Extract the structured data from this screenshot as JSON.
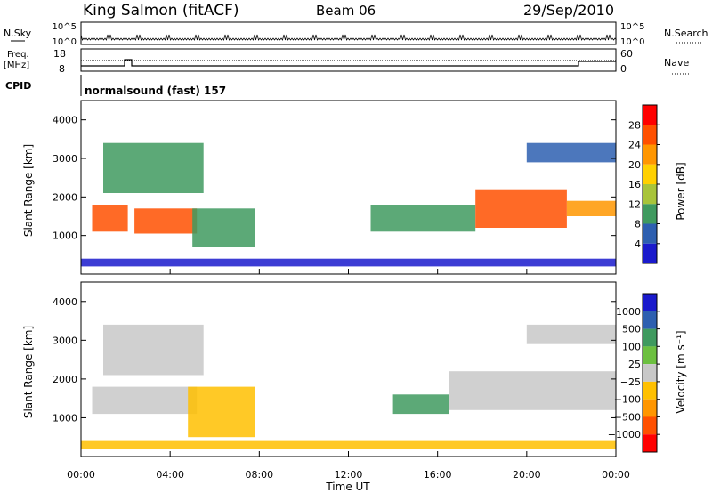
{
  "header": {
    "station": "King Salmon (fitACF)",
    "beam": "Beam 06",
    "date": "29/Sep/2010"
  },
  "top_panels": {
    "nsky_label": "N.Sky",
    "nsearch_label": "N.Search",
    "nsky_ticks": [
      "10^5",
      "10^0"
    ],
    "nsearch_ticks": [
      "10^5",
      "10^0"
    ],
    "freq_label": "Freq.",
    "freq_unit": "[MHz]",
    "freq_ticks": [
      "18",
      "8"
    ],
    "nave_label": "Nave",
    "nave_ticks": [
      "60",
      "0"
    ],
    "cpid_label": "CPID",
    "cpid_value": "normalsound (fast) 157"
  },
  "chart_data": [
    {
      "type": "heatmap",
      "panel": "power",
      "ylabel": "Slant Range [km]",
      "y_ticks": [
        "1000",
        "2000",
        "3000",
        "4000"
      ],
      "xlabel": "Time UT",
      "x_ticks": [
        "00:00",
        "04:00",
        "08:00",
        "12:00",
        "16:00",
        "20:00",
        "00:00"
      ],
      "colorbar": {
        "label": "Power [dB]",
        "ticks": [
          "28",
          "24",
          "20",
          "16",
          "12",
          "8",
          "4"
        ],
        "colors": [
          "#ff0000",
          "#ff5000",
          "#ff9600",
          "#ffd000",
          "#a8c43a",
          "#3f9a5f",
          "#2d5fb0",
          "#1a1acc"
        ]
      },
      "regions": [
        {
          "t0": 0.5,
          "t1": 2.1,
          "r0": 1100,
          "r1": 1800,
          "color": "#ff5000"
        },
        {
          "t0": 2.4,
          "t1": 5.2,
          "r0": 1050,
          "r1": 1700,
          "color": "#ff5000"
        },
        {
          "t0": 5.0,
          "t1": 7.8,
          "r0": 700,
          "r1": 1700,
          "color": "#3f9a5f"
        },
        {
          "t0": 1.0,
          "t1": 5.5,
          "r0": 2100,
          "r1": 3400,
          "color": "#3f9a5f"
        },
        {
          "t0": 13.0,
          "t1": 17.7,
          "r0": 1100,
          "r1": 1800,
          "color": "#3f9a5f"
        },
        {
          "t0": 17.7,
          "t1": 21.8,
          "r0": 1200,
          "r1": 2200,
          "color": "#ff5000"
        },
        {
          "t0": 21.8,
          "t1": 24.0,
          "r0": 1500,
          "r1": 1900,
          "color": "#ff9600"
        },
        {
          "t0": 20.0,
          "t1": 24.0,
          "r0": 2900,
          "r1": 3400,
          "color": "#2d5fb0"
        },
        {
          "t0": 0.0,
          "t1": 24.0,
          "r0": 200,
          "r1": 400,
          "color": "#1a1acc"
        }
      ]
    },
    {
      "type": "heatmap",
      "panel": "velocity",
      "ylabel": "Slant Range [km]",
      "y_ticks": [
        "1000",
        "2000",
        "3000",
        "4000"
      ],
      "xlabel": "Time UT",
      "x_ticks": [
        "00:00",
        "04:00",
        "08:00",
        "12:00",
        "16:00",
        "20:00",
        "00:00"
      ],
      "colorbar": {
        "label": "Velocity [m s⁻¹]",
        "ticks": [
          "1000",
          "500",
          "100",
          "25",
          "−25",
          "−100",
          "−500",
          "−1000"
        ],
        "colors": [
          "#1a1acc",
          "#2d5fb0",
          "#3f9a5f",
          "#6cc040",
          "#c8c8c8",
          "#ffc000",
          "#ff9600",
          "#ff5000",
          "#ff0000"
        ]
      },
      "regions": [
        {
          "t0": 0.5,
          "t1": 5.2,
          "r0": 1100,
          "r1": 1800,
          "color": "#c8c8c8"
        },
        {
          "t0": 4.8,
          "t1": 7.8,
          "r0": 500,
          "r1": 1800,
          "color": "#ffc000"
        },
        {
          "t0": 1.0,
          "t1": 5.5,
          "r0": 2100,
          "r1": 3400,
          "color": "#c8c8c8"
        },
        {
          "t0": 14.0,
          "t1": 16.5,
          "r0": 1100,
          "r1": 1600,
          "color": "#3f9a5f"
        },
        {
          "t0": 16.5,
          "t1": 24.0,
          "r0": 1200,
          "r1": 2200,
          "color": "#c8c8c8"
        },
        {
          "t0": 20.0,
          "t1": 24.0,
          "r0": 2900,
          "r1": 3400,
          "color": "#c8c8c8"
        },
        {
          "t0": 0.0,
          "t1": 24.0,
          "r0": 200,
          "r1": 400,
          "color": "#ffc000"
        }
      ]
    }
  ]
}
